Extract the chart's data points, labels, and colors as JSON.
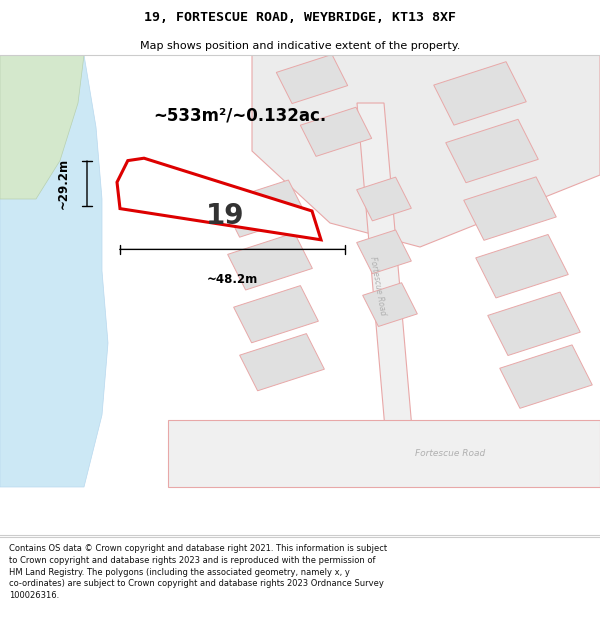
{
  "title_line1": "19, FORTESCUE ROAD, WEYBRIDGE, KT13 8XF",
  "title_line2": "Map shows position and indicative extent of the property.",
  "footer_text": "Contains OS data © Crown copyright and database right 2021. This information is subject to Crown copyright and database rights 2023 and is reproduced with the permission of HM Land Registry. The polygons (including the associated geometry, namely x, y co-ordinates) are subject to Crown copyright and database rights 2023 Ordnance Survey 100026316.",
  "area_label": "~533m²/~0.132ac.",
  "width_label": "~48.2m",
  "height_label": "~29.2m",
  "plot_number": "19",
  "map_bg": "#f2f2f2",
  "water_color": "#cce8f5",
  "green_color": "#d4e8cc",
  "block_fill": "#e0e0e0",
  "block_edge": "#e8a8a8",
  "road_fill": "#ebebeb",
  "road_edge": "#e8a8a8",
  "plot_fill": "#ffffff",
  "plot_edge": "#dd0000",
  "label_road": "#b0b0b0",
  "dim_color": "#000000",
  "text_color": "#222222",
  "title_color": "#000000",
  "footer_color": "#111111"
}
